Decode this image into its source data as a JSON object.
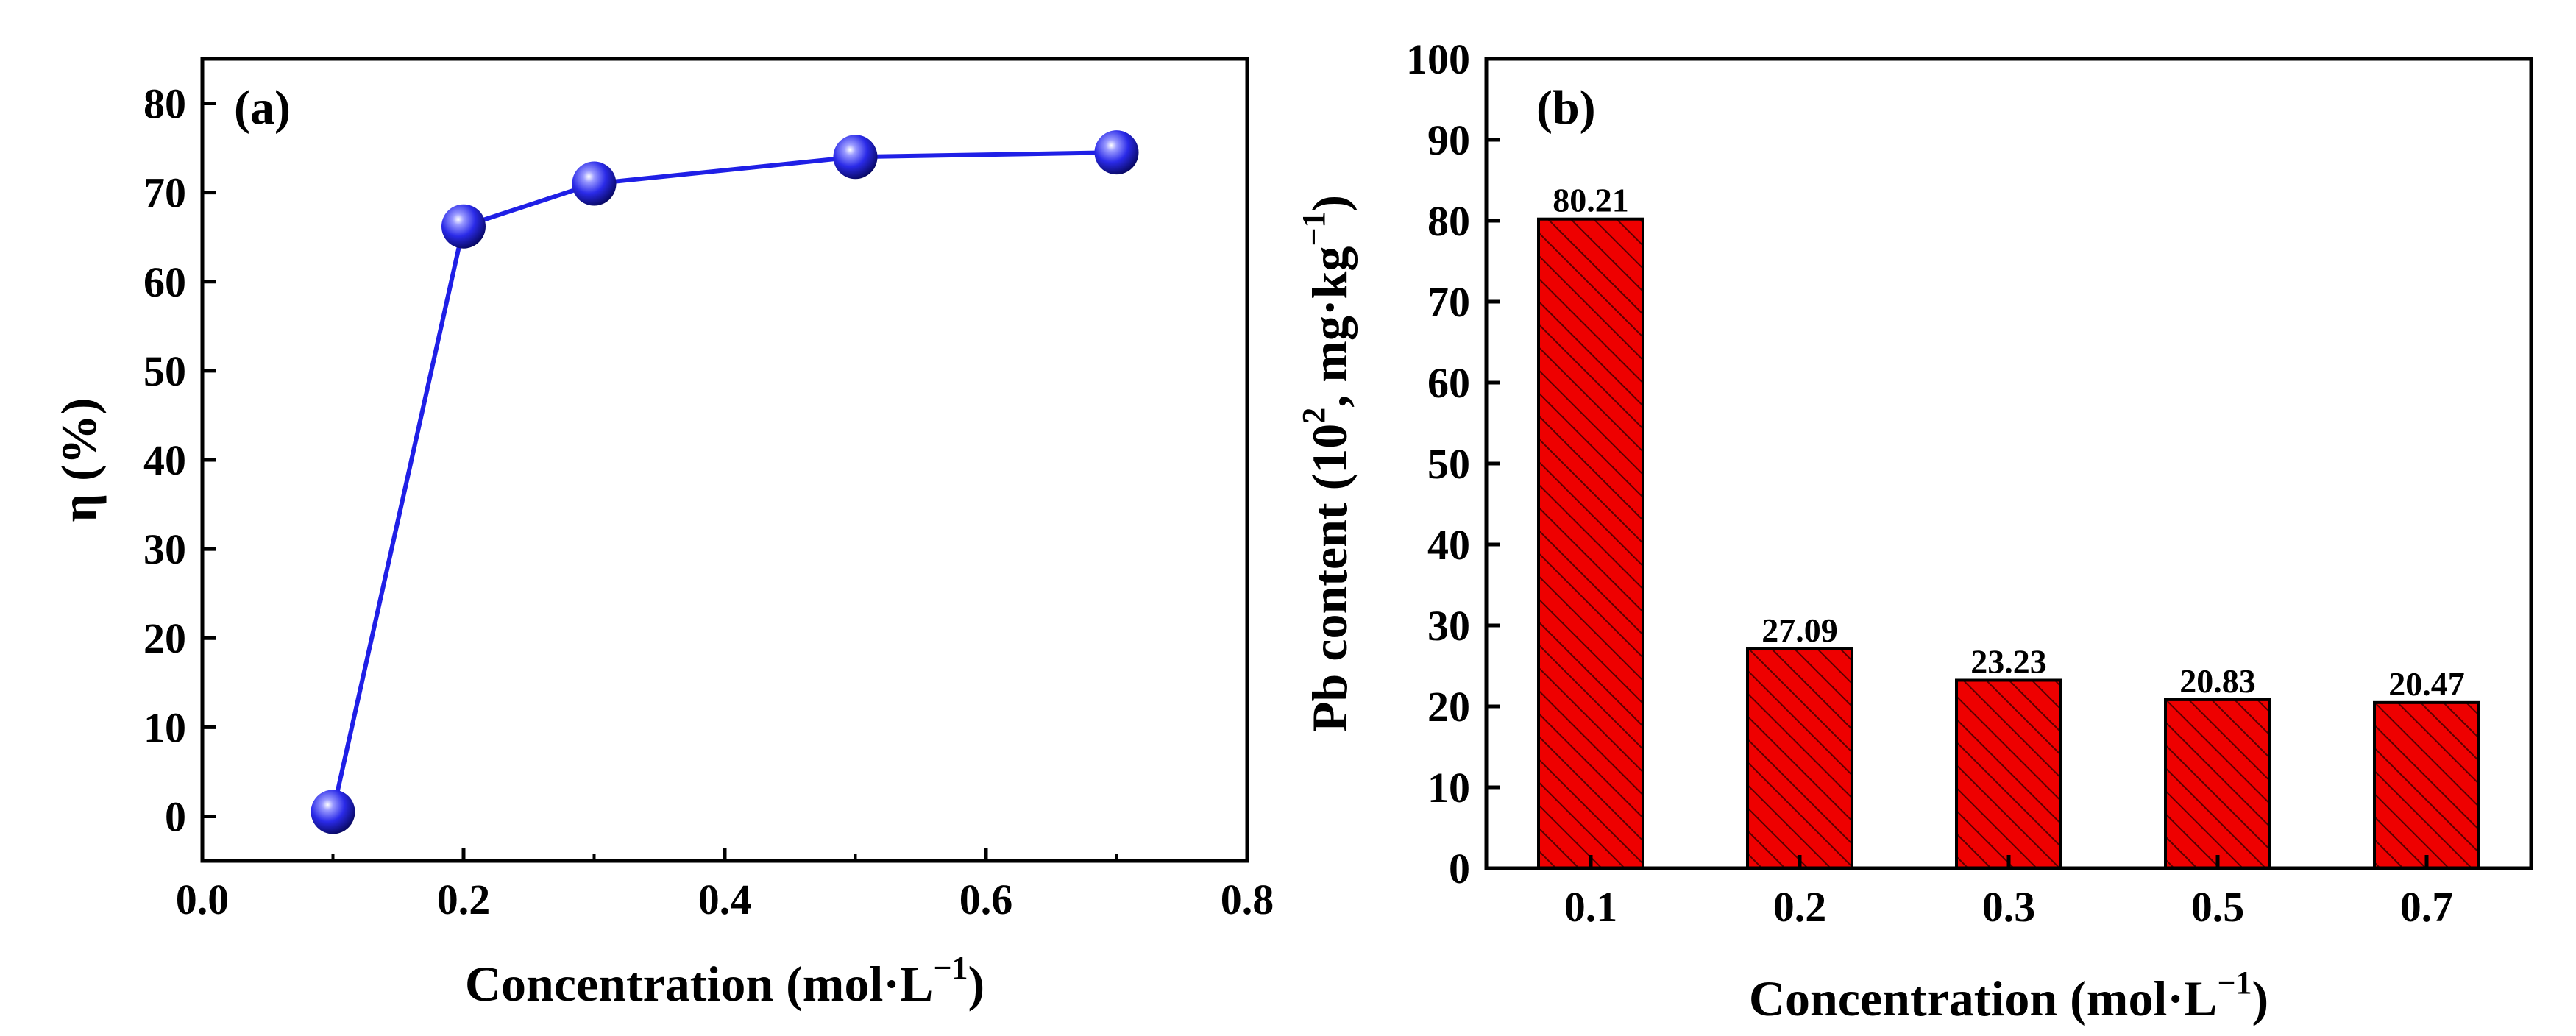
{
  "colors": {
    "line_series": "#1f1fe6",
    "marker_fill": "#2a2ae8",
    "bar_fill": "#ee0000",
    "bar_hatch": "#5a0000",
    "axis": "#000000"
  },
  "chart_data": [
    {
      "panel": "a",
      "panel_label": "(a)",
      "type": "line",
      "title": "",
      "xlabel_main": "Concentration (mol·L",
      "xlabel_sup": "−1",
      "xlabel_close": ")",
      "ylabel": "η (%)",
      "xlim": [
        0.0,
        0.8
      ],
      "ylim": [
        -5,
        85
      ],
      "xticks": [
        0.0,
        0.2,
        0.4,
        0.6,
        0.8
      ],
      "xtick_labels": [
        "0.0",
        "0.2",
        "0.4",
        "0.6",
        "0.8"
      ],
      "yticks": [
        0,
        10,
        20,
        30,
        40,
        50,
        60,
        70,
        80
      ],
      "ytick_labels": [
        "0",
        "10",
        "20",
        "30",
        "40",
        "50",
        "60",
        "70",
        "80"
      ],
      "grid": false,
      "series": [
        {
          "name": "η",
          "x": [
            0.1,
            0.2,
            0.3,
            0.5,
            0.7
          ],
          "y": [
            0.5,
            66.2,
            71.0,
            74.0,
            74.5
          ]
        }
      ]
    },
    {
      "panel": "b",
      "panel_label": "(b)",
      "type": "bar",
      "title": "",
      "xlabel_main": "Concentration (mol·L",
      "xlabel_sup": "−1",
      "xlabel_close": ")",
      "ylabel_main": "Pb content (10",
      "ylabel_sup1": "2",
      "ylabel_mid": ", mg·kg",
      "ylabel_sup2": "−1",
      "ylabel_close": ")",
      "ylim": [
        0,
        100
      ],
      "yticks": [
        0,
        10,
        20,
        30,
        40,
        50,
        60,
        70,
        80,
        90,
        100
      ],
      "ytick_labels": [
        "0",
        "10",
        "20",
        "30",
        "40",
        "50",
        "60",
        "70",
        "80",
        "90",
        "100"
      ],
      "grid": false,
      "categories": [
        "0.1",
        "0.2",
        "0.3",
        "0.5",
        "0.7"
      ],
      "values": [
        80.21,
        27.09,
        23.23,
        20.83,
        20.47
      ],
      "value_labels": [
        "80.21",
        "27.09",
        "23.23",
        "20.83",
        "20.47"
      ]
    }
  ]
}
